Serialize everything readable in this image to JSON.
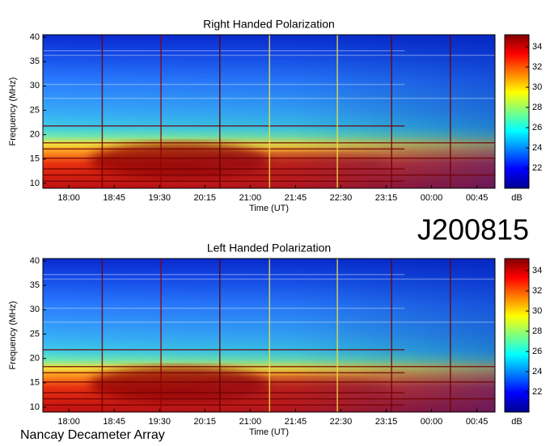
{
  "header": {
    "text": "J200815"
  },
  "footer": {
    "text": "Nancay Decameter Array"
  },
  "chart_data": [
    {
      "type": "heatmap",
      "title": "Right Handed Polarization",
      "xlabel": "Time (UT)",
      "ylabel": "Frequency (MHz)",
      "xlim": [
        17.57,
        25.05
      ],
      "xticks": [
        {
          "value": 18,
          "label": "18:00"
        },
        {
          "value": 18.75,
          "label": "18:45"
        },
        {
          "value": 19.5,
          "label": "19:30"
        },
        {
          "value": 20.25,
          "label": "20:15"
        },
        {
          "value": 21,
          "label": "21:00"
        },
        {
          "value": 21.75,
          "label": "21:45"
        },
        {
          "value": 22.5,
          "label": "22:30"
        },
        {
          "value": 23.25,
          "label": "23:15"
        },
        {
          "value": 24,
          "label": "00:00"
        },
        {
          "value": 24.75,
          "label": "00:45"
        }
      ],
      "ylim": [
        9,
        40.5
      ],
      "yticks": [
        10,
        15,
        20,
        25,
        30,
        35,
        40
      ],
      "colormap": "jet",
      "colorbar": {
        "label": "dB",
        "lim": [
          20,
          35.2
        ],
        "ticks": [
          22,
          24,
          26,
          28,
          30,
          32,
          34
        ]
      }
    },
    {
      "type": "heatmap",
      "title": "Left Handed Polarization",
      "xlabel": "Time (UT)",
      "ylabel": "Frequency (MHz)",
      "xlim": [
        17.57,
        25.05
      ],
      "xticks": [
        {
          "value": 18,
          "label": "18:00"
        },
        {
          "value": 18.75,
          "label": "18:45"
        },
        {
          "value": 19.5,
          "label": "19:30"
        },
        {
          "value": 20.25,
          "label": "20:15"
        },
        {
          "value": 21,
          "label": "21:00"
        },
        {
          "value": 21.75,
          "label": "21:45"
        },
        {
          "value": 22.5,
          "label": "22:30"
        },
        {
          "value": 23.25,
          "label": "23:15"
        },
        {
          "value": 24,
          "label": "00:00"
        },
        {
          "value": 24.75,
          "label": "00:45"
        }
      ],
      "ylim": [
        9,
        40.5
      ],
      "yticks": [
        10,
        15,
        20,
        25,
        30,
        35,
        40
      ],
      "colormap": "jet",
      "colorbar": {
        "label": "dB",
        "lim": [
          20,
          35.2
        ],
        "ticks": [
          22,
          24,
          26,
          28,
          30,
          32,
          34
        ]
      }
    }
  ]
}
